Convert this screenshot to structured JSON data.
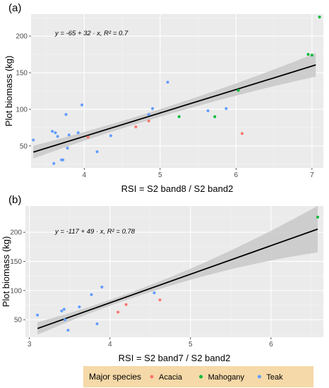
{
  "colors": {
    "panel_bg": "#ebebeb",
    "grid_major": "#ffffff",
    "grid_minor": "#f4f4f4",
    "band": "#c8c8c8",
    "line": "#000000",
    "legend_bg": "#f5d9a8"
  },
  "chart_data": [
    {
      "type": "scatter",
      "panel_label": "(a)",
      "xlabel": "RSI = S2 band8 / S2 band2",
      "ylabel": "Plot biomass (kg)",
      "equation": "y = -65 + 32 · x,  R² = 0.7",
      "xlim": [
        3.3,
        7.15
      ],
      "ylim": [
        20,
        230
      ],
      "xticks": [
        4,
        5,
        6,
        7
      ],
      "yticks": [
        50,
        100,
        150,
        200
      ],
      "grid": true,
      "fit": {
        "intercept": -65,
        "slope": 32,
        "x_range": [
          3.33,
          7.05
        ],
        "ci_halfwidth_center": 5,
        "ci_halfwidth_ends": 16,
        "x_center": 4.7
      },
      "series": [
        {
          "name": "Acacia",
          "color": "#f8766d",
          "points": [
            [
              4.05,
              62
            ],
            [
              4.68,
              76
            ],
            [
              4.85,
              84
            ],
            [
              6.08,
              67
            ]
          ]
        },
        {
          "name": "Mahogany",
          "color": "#00ba38",
          "points": [
            [
              5.25,
              90
            ],
            [
              5.72,
              90
            ],
            [
              6.03,
              126
            ],
            [
              6.95,
              175
            ],
            [
              7.0,
              174
            ],
            [
              7.1,
              226
            ]
          ]
        },
        {
          "name": "Teak",
          "color": "#619cff",
          "points": [
            [
              3.33,
              58
            ],
            [
              3.58,
              70
            ],
            [
              3.62,
              68
            ],
            [
              3.6,
              26
            ],
            [
              3.65,
              63
            ],
            [
              3.7,
              31
            ],
            [
              3.72,
              31
            ],
            [
              3.76,
              93
            ],
            [
              3.78,
              47
            ],
            [
              3.8,
              65
            ],
            [
              3.92,
              68
            ],
            [
              3.97,
              106
            ],
            [
              4.17,
              42
            ],
            [
              4.35,
              64
            ],
            [
              4.85,
              93
            ],
            [
              4.9,
              101
            ],
            [
              5.1,
              137
            ],
            [
              5.63,
              98
            ],
            [
              5.87,
              101
            ]
          ]
        }
      ]
    },
    {
      "type": "scatter",
      "panel_label": "(b)",
      "xlabel": "RSI = S2 band7 / S2 band2",
      "ylabel": "Plot biomass (kg)",
      "equation": "y = -117 + 49 · x,  R² = 0.78",
      "xlim": [
        2.95,
        6.65
      ],
      "ylim": [
        20,
        245
      ],
      "xticks": [
        3,
        4,
        5,
        6
      ],
      "yticks": [
        50,
        100,
        150,
        200
      ],
      "grid": true,
      "fit": {
        "intercept": -117,
        "slope": 49,
        "x_range": [
          3.1,
          6.58
        ],
        "ci_halfwidth_center": 5,
        "ci_halfwidth_ends": 40,
        "x_center": 4.1
      },
      "series": [
        {
          "name": "Acacia",
          "color": "#f8766d",
          "points": [
            [
              4.1,
              63
            ],
            [
              4.2,
              76
            ],
            [
              4.62,
              84
            ]
          ]
        },
        {
          "name": "Mahogany",
          "color": "#00ba38",
          "points": [
            [
              6.58,
              226
            ]
          ]
        },
        {
          "name": "Teak",
          "color": "#619cff",
          "points": [
            [
              3.1,
              58
            ],
            [
              3.4,
              65
            ],
            [
              3.43,
              68
            ],
            [
              3.44,
              50
            ],
            [
              3.48,
              32
            ],
            [
              3.62,
              72
            ],
            [
              3.77,
              93
            ],
            [
              3.84,
              43
            ],
            [
              3.9,
              106
            ],
            [
              4.55,
              96
            ]
          ]
        }
      ]
    }
  ],
  "legend": {
    "title": "Major species",
    "items": [
      {
        "label": "Acacia",
        "color": "#f8766d"
      },
      {
        "label": "Mahogany",
        "color": "#00ba38"
      },
      {
        "label": "Teak",
        "color": "#619cff"
      }
    ]
  }
}
